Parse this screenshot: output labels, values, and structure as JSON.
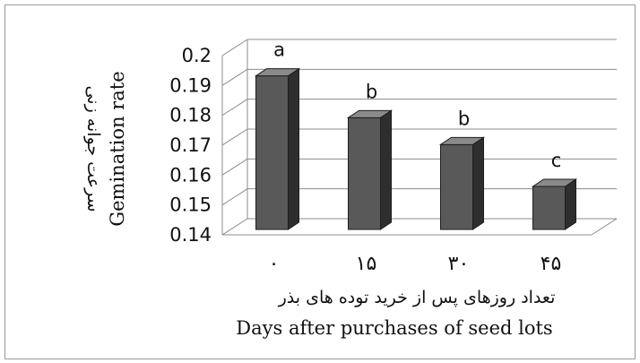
{
  "chart_data": {
    "type": "bar",
    "categories": [
      "۰",
      "۱۵",
      "۳۰",
      "۴۵"
    ],
    "values": [
      0.195,
      0.181,
      0.172,
      0.158
    ],
    "significance_letters": [
      "a",
      "b",
      "b",
      "c"
    ],
    "xlabel_fa": "تعداد روزهای پس از خرید توده های بذر",
    "xlabel": "Days after purchases of seed lots",
    "ylabel_fa": "سرعت جوانه زنی",
    "ylabel": "Gemination rate",
    "ylim": [
      0.14,
      0.2
    ],
    "yticks": [
      "0.14",
      "0.15",
      "0.16",
      "0.17",
      "0.18",
      "0.19",
      "0.2"
    ],
    "grid": true,
    "style": "3d-column",
    "colors": {
      "bar_front": "#595959",
      "bar_side": "#2e2e2e",
      "bar_top": "#8a8a8a",
      "grid": "#8c8c8c"
    }
  }
}
